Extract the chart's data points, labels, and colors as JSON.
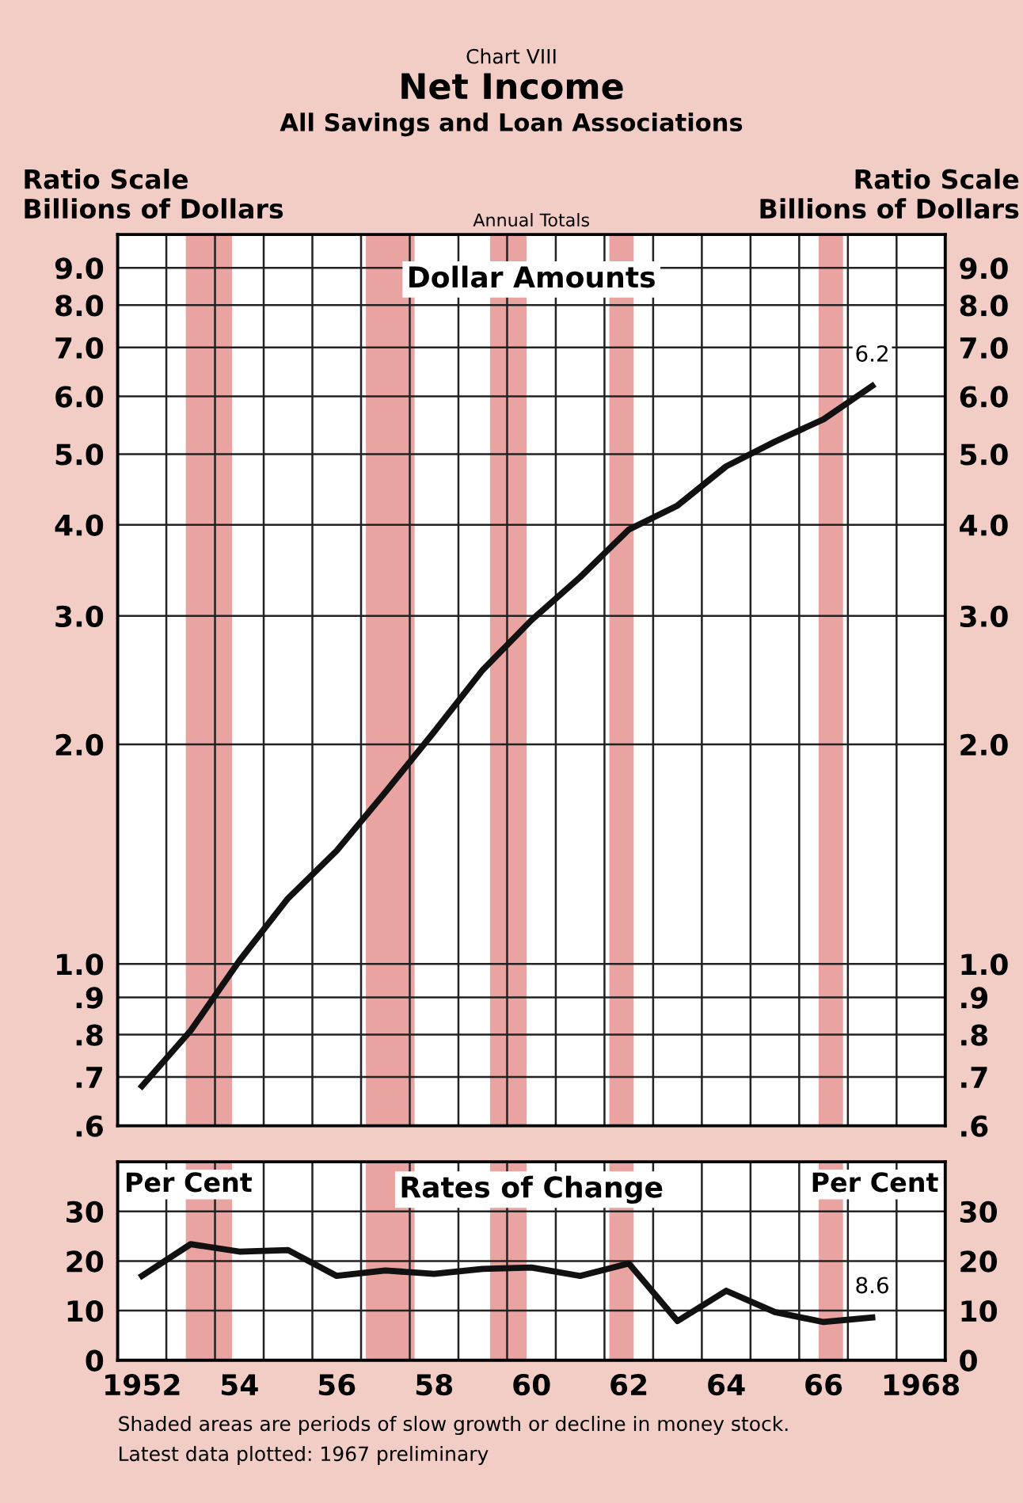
{
  "chart_data": [
    {
      "type": "line",
      "title": "Net Income",
      "subtitle": "All Savings and Loan Associations",
      "ylabel": "Ratio Scale\nBillions of Dollars",
      "y2label": "Ratio Scale\nBillions of Dollars",
      "annotations": [
        "Chart VIII",
        "Annual Totals",
        "Dollar Amounts"
      ],
      "x": [
        1952,
        1953,
        1954,
        1955,
        1956,
        1957,
        1958,
        1959,
        1960,
        1961,
        1962,
        1963,
        1964,
        1965,
        1966,
        1967
      ],
      "series": [
        {
          "color": "#111111",
          "values": [
            0.68,
            0.81,
            1.01,
            1.23,
            1.43,
            1.72,
            2.08,
            2.53,
            2.96,
            3.39,
            3.94,
            4.25,
            4.81,
            5.2,
            5.58,
            6.2
          ],
          "value_labels": [
            null,
            null,
            null,
            null,
            null,
            null,
            null,
            null,
            null,
            null,
            null,
            null,
            null,
            null,
            null,
            "6.2"
          ]
        }
      ],
      "log": "y",
      "grid": true,
      "tick_labels": "y",
      "marker": "none",
      "line_style": "solid",
      "xlim": [
        1951.5,
        1968.5
      ],
      "xticks": [
        {
          "value": 1952.5,
          "label": null
        },
        {
          "value": 1953.5,
          "label": null
        },
        {
          "value": 1954.5,
          "label": null
        },
        {
          "value": 1955.5,
          "label": null
        },
        {
          "value": 1956.5,
          "label": null
        },
        {
          "value": 1957.5,
          "label": null
        },
        {
          "value": 1958.5,
          "label": null
        },
        {
          "value": 1959.5,
          "label": null
        },
        {
          "value": 1960.5,
          "label": null
        },
        {
          "value": 1961.5,
          "label": null
        },
        {
          "value": 1962.5,
          "label": null
        },
        {
          "value": 1963.5,
          "label": null
        },
        {
          "value": 1964.5,
          "label": null
        },
        {
          "value": 1965.5,
          "label": null
        },
        {
          "value": 1966.5,
          "label": null
        },
        {
          "value": 1967.5,
          "label": null
        }
      ],
      "ylim": [
        0.6,
        10
      ],
      "yticks": [
        {
          "value": 0.6,
          "label": ".6"
        },
        {
          "value": 0.7,
          "label": ".7"
        },
        {
          "value": 0.8,
          "label": ".8"
        },
        {
          "value": 0.9,
          "label": ".9"
        },
        {
          "value": 1,
          "label": "1.0"
        },
        {
          "value": 2,
          "label": "2.0"
        },
        {
          "value": 3,
          "label": "3.0"
        },
        {
          "value": 4,
          "label": "4.0"
        },
        {
          "value": 5,
          "label": "5.0"
        },
        {
          "value": 6,
          "label": "6.0"
        },
        {
          "value": 7,
          "label": "7.0"
        },
        {
          "value": 8,
          "label": "8.0"
        },
        {
          "value": 9,
          "label": "9.0"
        }
      ],
      "bands": [
        {
          "axis": "x",
          "from": 1952.9,
          "to": 1953.85,
          "color": "#e9a3a0"
        },
        {
          "axis": "x",
          "from": 1956.6,
          "to": 1957.6,
          "color": "#e9a3a0"
        },
        {
          "axis": "x",
          "from": 1959.15,
          "to": 1959.9,
          "color": "#e9a3a0"
        },
        {
          "axis": "x",
          "from": 1961.6,
          "to": 1962.1,
          "color": "#e9a3a0"
        },
        {
          "axis": "x",
          "from": 1965.9,
          "to": 1966.4,
          "color": "#e9a3a0"
        }
      ]
    },
    {
      "type": "line",
      "ylabel": "Per Cent",
      "y2label": "Per Cent",
      "annotations": [
        "Rates of Change",
        "Shaded areas are periods of slow growth or decline in money stock.",
        "Latest data plotted: 1967 preliminary"
      ],
      "x": [
        1952,
        1953,
        1954,
        1955,
        1956,
        1957,
        1958,
        1959,
        1960,
        1961,
        1962,
        1963,
        1964,
        1965,
        1966,
        1967
      ],
      "series": [
        {
          "color": "#111111",
          "values": [
            17.0,
            23.4,
            21.9,
            22.2,
            17.0,
            18.1,
            17.4,
            18.4,
            18.7,
            17.0,
            19.5,
            7.9,
            14.0,
            9.7,
            7.7,
            8.6
          ],
          "value_labels": [
            null,
            null,
            null,
            null,
            null,
            null,
            null,
            null,
            null,
            null,
            null,
            null,
            null,
            null,
            null,
            "8.6"
          ]
        }
      ],
      "grid": true,
      "marker": "none",
      "line_style": "solid",
      "xlim": [
        1951.5,
        1968.5
      ],
      "xticks": [
        {
          "value": 1952,
          "label": "1952"
        },
        {
          "value": 1954,
          "label": "54"
        },
        {
          "value": 1956,
          "label": "56"
        },
        {
          "value": 1958,
          "label": "58"
        },
        {
          "value": 1960,
          "label": "60"
        },
        {
          "value": 1962,
          "label": "62"
        },
        {
          "value": 1964,
          "label": "64"
        },
        {
          "value": 1966,
          "label": "66"
        },
        {
          "value": 1968,
          "label": "1968"
        },
        {
          "value": 1952.5,
          "label": null
        },
        {
          "value": 1953.5,
          "label": null
        },
        {
          "value": 1954.5,
          "label": null
        },
        {
          "value": 1955.5,
          "label": null
        },
        {
          "value": 1956.5,
          "label": null
        },
        {
          "value": 1957.5,
          "label": null
        },
        {
          "value": 1958.5,
          "label": null
        },
        {
          "value": 1959.5,
          "label": null
        },
        {
          "value": 1960.5,
          "label": null
        },
        {
          "value": 1961.5,
          "label": null
        },
        {
          "value": 1962.5,
          "label": null
        },
        {
          "value": 1963.5,
          "label": null
        },
        {
          "value": 1964.5,
          "label": null
        },
        {
          "value": 1965.5,
          "label": null
        },
        {
          "value": 1966.5,
          "label": null
        },
        {
          "value": 1967.5,
          "label": null
        }
      ],
      "ylim": [
        0,
        40
      ],
      "yticks": [
        0,
        10,
        20,
        30
      ],
      "y2lim": [
        0,
        40
      ],
      "y2ticks": [
        0,
        10,
        20,
        30
      ],
      "bands": [
        {
          "axis": "x",
          "from": 1952.9,
          "to": 1953.85,
          "color": "#e9a3a0"
        },
        {
          "axis": "x",
          "from": 1956.6,
          "to": 1957.6,
          "color": "#e9a3a0"
        },
        {
          "axis": "x",
          "from": 1959.15,
          "to": 1959.9,
          "color": "#e9a3a0"
        },
        {
          "axis": "x",
          "from": 1961.6,
          "to": 1962.1,
          "color": "#e9a3a0"
        },
        {
          "axis": "x",
          "from": 1965.9,
          "to": 1966.4,
          "color": "#e9a3a0"
        }
      ]
    }
  ]
}
